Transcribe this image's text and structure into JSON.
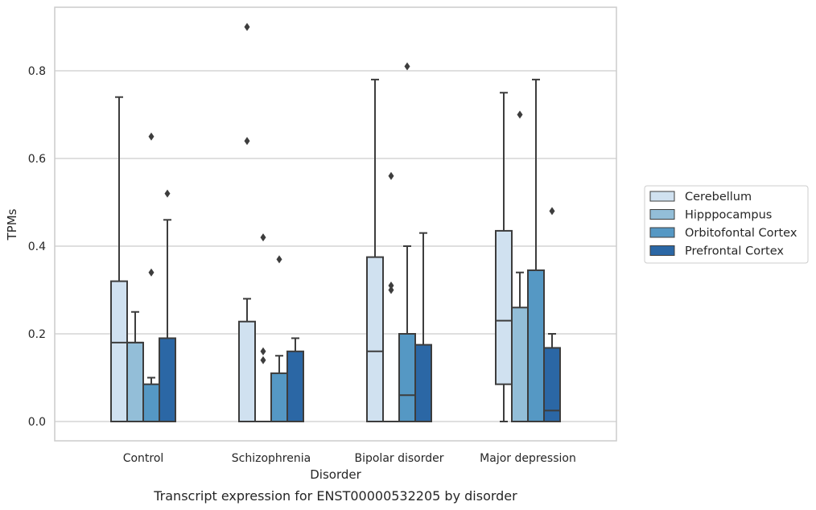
{
  "chart_data": {
    "type": "box",
    "caption": "Transcript expression for ENST00000532205 by disorder",
    "xlabel": "Disorder",
    "ylabel": "TPMs",
    "ylim": [
      -0.043,
      0.94
    ],
    "yticks": [
      0.0,
      0.2,
      0.4,
      0.6,
      0.8
    ],
    "ytick_labels": [
      "0.0",
      "0.2",
      "0.4",
      "0.6",
      "0.8"
    ],
    "grid": true,
    "legend_position": "right",
    "categories": [
      "Control",
      "Schizophrenia",
      "Bipolar disorder",
      "Major depression"
    ],
    "series": [
      {
        "name": "Cerebellum",
        "color": "#d0e1f0",
        "boxes": [
          {
            "q1": 0.0,
            "median": 0.18,
            "q3": 0.32,
            "whisker_low": 0.0,
            "whisker_high": 0.74,
            "outliers": []
          },
          {
            "q1": 0.0,
            "median": 0.0,
            "q3": 0.228,
            "whisker_low": 0.0,
            "whisker_high": 0.28,
            "outliers": [
              0.64,
              0.9
            ]
          },
          {
            "q1": 0.0,
            "median": 0.16,
            "q3": 0.375,
            "whisker_low": 0.0,
            "whisker_high": 0.78,
            "outliers": []
          },
          {
            "q1": 0.085,
            "median": 0.23,
            "q3": 0.435,
            "whisker_low": 0.0,
            "whisker_high": 0.75,
            "outliers": []
          }
        ]
      },
      {
        "name": "Hipppocampus",
        "color": "#93bed8",
        "boxes": [
          {
            "q1": 0.0,
            "median": 0.18,
            "q3": 0.18,
            "whisker_low": 0.0,
            "whisker_high": 0.25,
            "outliers": []
          },
          {
            "q1": 0.0,
            "median": 0.0,
            "q3": 0.0,
            "whisker_low": 0.0,
            "whisker_high": 0.0,
            "outliers": [
              0.14,
              0.16,
              0.42
            ]
          },
          {
            "q1": 0.0,
            "median": 0.0,
            "q3": 0.0,
            "whisker_low": 0.0,
            "whisker_high": 0.0,
            "outliers": [
              0.3,
              0.31,
              0.56
            ]
          },
          {
            "q1": 0.0,
            "median": 0.0,
            "q3": 0.26,
            "whisker_low": 0.0,
            "whisker_high": 0.34,
            "outliers": [
              0.7
            ]
          }
        ]
      },
      {
        "name": "Orbitofontal Cortex",
        "color": "#5598c4",
        "boxes": [
          {
            "q1": 0.0,
            "median": 0.0,
            "q3": 0.085,
            "whisker_low": 0.0,
            "whisker_high": 0.1,
            "outliers": [
              0.34,
              0.65
            ]
          },
          {
            "q1": 0.0,
            "median": 0.0,
            "q3": 0.11,
            "whisker_low": 0.0,
            "whisker_high": 0.15,
            "outliers": [
              0.37
            ]
          },
          {
            "q1": 0.0,
            "median": 0.06,
            "q3": 0.2,
            "whisker_low": 0.0,
            "whisker_high": 0.4,
            "outliers": [
              0.81
            ]
          },
          {
            "q1": 0.0,
            "median": 0.0,
            "q3": 0.345,
            "whisker_low": 0.0,
            "whisker_high": 0.78,
            "outliers": []
          }
        ]
      },
      {
        "name": "Prefrontal Cortex",
        "color": "#2b67a5",
        "boxes": [
          {
            "q1": 0.0,
            "median": 0.0,
            "q3": 0.19,
            "whisker_low": 0.0,
            "whisker_high": 0.46,
            "outliers": [
              0.52
            ]
          },
          {
            "q1": 0.0,
            "median": 0.0,
            "q3": 0.16,
            "whisker_low": 0.0,
            "whisker_high": 0.19,
            "outliers": []
          },
          {
            "q1": 0.0,
            "median": 0.0,
            "q3": 0.175,
            "whisker_low": 0.0,
            "whisker_high": 0.43,
            "outliers": []
          },
          {
            "q1": 0.0,
            "median": 0.025,
            "q3": 0.168,
            "whisker_low": 0.0,
            "whisker_high": 0.2,
            "outliers": [
              0.48
            ]
          }
        ]
      }
    ]
  }
}
